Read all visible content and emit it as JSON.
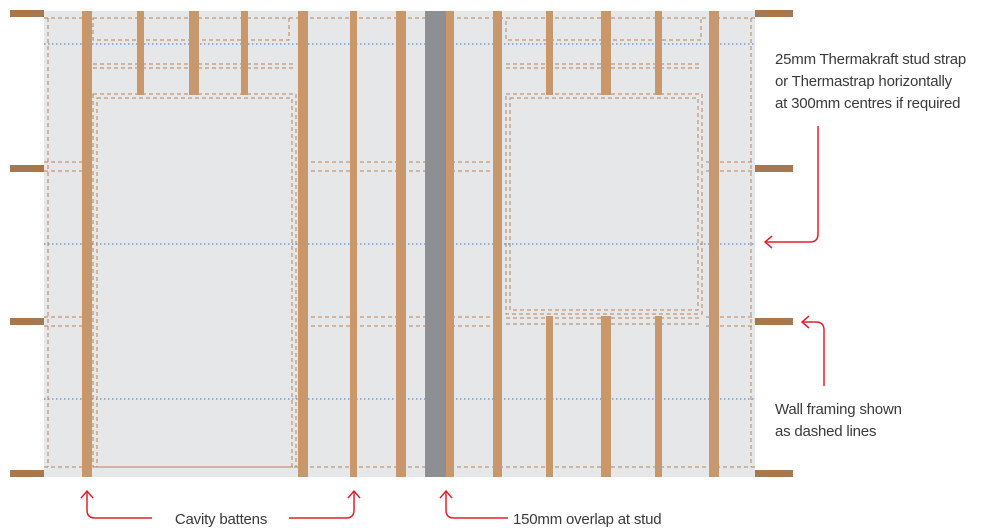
{
  "labels": {
    "strap_line1": "25mm Thermakraft stud strap",
    "strap_line2": "or Thermastrap horizontally",
    "strap_line3": "at 300mm centres if required",
    "framing_line1": "Wall framing shown",
    "framing_line2": "as dashed lines",
    "battens": "Cavity battens",
    "overlap": "150mm overlap at stud"
  },
  "colors": {
    "wrap": "#e6e7e8",
    "batten": "#c8976b",
    "framing_dash": "#b5825a",
    "nogging": "#a9774e",
    "overlap_band": "#8e8f92",
    "strap_line": "#3b78c9",
    "callout": "#e0222a",
    "text": "#3a3a3a"
  }
}
